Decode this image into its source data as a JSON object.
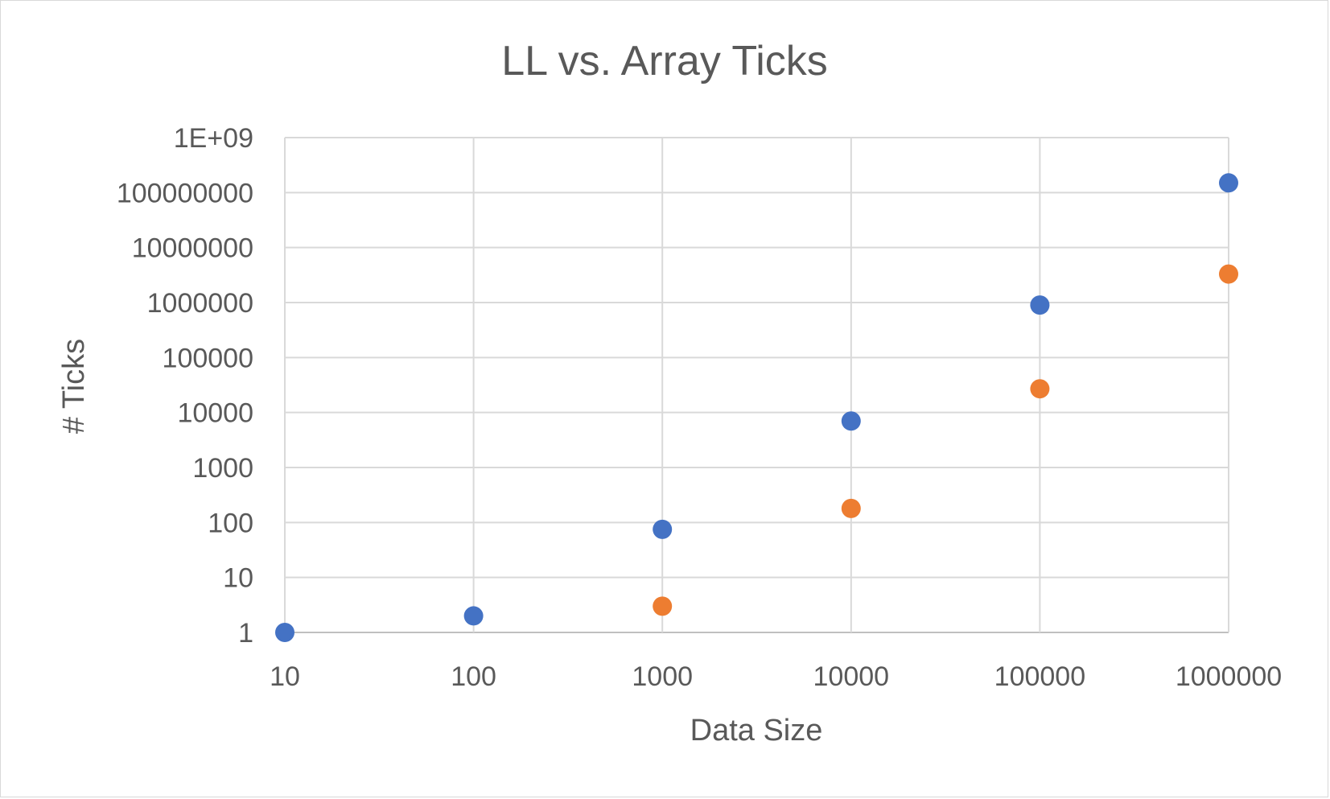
{
  "chart_data": {
    "type": "scatter",
    "title": "LL vs. Array Ticks",
    "xlabel": "Data Size",
    "ylabel": "# Ticks",
    "x_scale": "log",
    "y_scale": "log",
    "xlim": [
      10,
      1000000
    ],
    "ylim": [
      1,
      1000000000
    ],
    "x_ticks": [
      "10",
      "100",
      "1000",
      "10000",
      "100000",
      "1000000"
    ],
    "y_ticks": [
      "1",
      "10",
      "100",
      "1000",
      "10000",
      "100000",
      "1000000",
      "10000000",
      "100000000",
      "1E+09"
    ],
    "grid": true,
    "legend": "none",
    "series": [
      {
        "color": "#4472c4",
        "points": [
          {
            "x": 10,
            "y": 1
          },
          {
            "x": 100,
            "y": 2
          },
          {
            "x": 1000,
            "y": 75
          },
          {
            "x": 10000,
            "y": 7000
          },
          {
            "x": 100000,
            "y": 900000
          },
          {
            "x": 1000000,
            "y": 150000000
          }
        ]
      },
      {
        "color": "#ed7d31",
        "points": [
          {
            "x": 1000,
            "y": 3
          },
          {
            "x": 10000,
            "y": 180
          },
          {
            "x": 100000,
            "y": 27000
          },
          {
            "x": 1000000,
            "y": 3300000
          }
        ]
      }
    ]
  }
}
